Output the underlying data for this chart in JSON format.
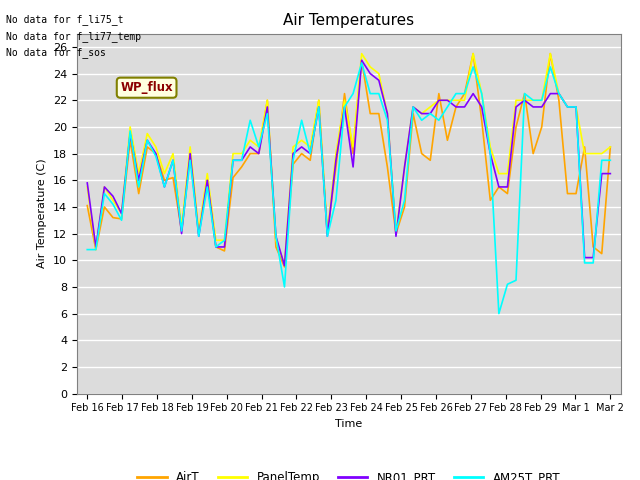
{
  "title": "Air Temperatures",
  "ylabel": "Air Temperature (C)",
  "xlabel": "Time",
  "xlabels": [
    "Feb 16",
    "Feb 17",
    "Feb 18",
    "Feb 19",
    "Feb 20",
    "Feb 21",
    "Feb 22",
    "Feb 23",
    "Feb 24",
    "Feb 25",
    "Feb 26",
    "Feb 27",
    "Feb 28",
    "Feb 29",
    "Mar 1",
    "Mar 2"
  ],
  "ylim": [
    0,
    27
  ],
  "yticks": [
    0,
    2,
    4,
    6,
    8,
    10,
    12,
    14,
    16,
    18,
    20,
    22,
    24,
    26
  ],
  "text_lines": [
    "No data for f_li75_t",
    "No data for f_li77_temp",
    "No data for f_sos"
  ],
  "wp_flux_label": "WP_flux",
  "legend_entries": [
    "AirT",
    "PanelTemp",
    "NR01_PRT",
    "AM25T_PRT"
  ],
  "legend_colors": [
    "#FFA500",
    "#FFFF00",
    "#8000FF",
    "#00FFFF"
  ],
  "background_color": "#DCDCDC",
  "AirT": [
    14.1,
    10.8,
    14.0,
    13.2,
    13.1,
    19.0,
    15.0,
    18.5,
    18.0,
    16.0,
    16.2,
    12.2,
    18.0,
    12.0,
    16.0,
    11.0,
    10.7,
    16.2,
    17.0,
    18.0,
    18.0,
    22.0,
    11.0,
    9.5,
    17.2,
    18.0,
    17.5,
    22.0,
    12.0,
    17.0,
    22.5,
    18.0,
    25.0,
    21.0,
    21.0,
    17.0,
    12.0,
    14.0,
    21.0,
    18.0,
    17.5,
    22.5,
    19.0,
    21.5,
    22.5,
    25.5,
    20.5,
    14.5,
    15.5,
    15.0,
    20.0,
    22.5,
    18.0,
    20.0,
    25.5,
    22.0,
    15.0,
    15.0,
    18.5,
    11.0,
    10.5,
    18.5
  ],
  "PanelTemp": [
    15.5,
    10.8,
    15.5,
    14.5,
    13.5,
    20.0,
    16.5,
    19.5,
    18.5,
    16.5,
    18.0,
    12.5,
    18.5,
    12.2,
    16.5,
    11.5,
    11.5,
    18.0,
    18.0,
    19.0,
    18.5,
    22.0,
    11.5,
    9.7,
    18.5,
    19.0,
    18.5,
    22.0,
    12.0,
    18.0,
    22.0,
    18.5,
    25.5,
    24.5,
    24.0,
    21.0,
    12.0,
    17.0,
    21.5,
    21.0,
    21.5,
    22.0,
    22.0,
    22.0,
    22.0,
    25.5,
    22.5,
    18.5,
    16.5,
    16.5,
    22.0,
    22.0,
    22.0,
    22.0,
    25.5,
    22.5,
    21.5,
    21.5,
    18.0,
    18.0,
    18.0,
    18.5
  ],
  "NR01_PRT": [
    15.8,
    11.0,
    15.5,
    14.8,
    13.5,
    19.5,
    16.0,
    19.0,
    18.0,
    15.5,
    17.5,
    12.0,
    18.0,
    11.8,
    16.0,
    11.0,
    11.0,
    17.5,
    17.5,
    18.5,
    18.0,
    21.5,
    11.8,
    9.6,
    18.0,
    18.5,
    18.0,
    21.5,
    11.8,
    17.5,
    21.5,
    17.0,
    25.0,
    24.0,
    23.5,
    21.0,
    11.8,
    17.0,
    21.5,
    21.0,
    21.0,
    22.0,
    22.0,
    21.5,
    21.5,
    22.5,
    21.5,
    18.0,
    15.5,
    15.5,
    21.5,
    22.0,
    21.5,
    21.5,
    22.5,
    22.5,
    21.5,
    21.5,
    10.2,
    10.2,
    16.5,
    16.5
  ],
  "AM25T_PRT": [
    10.8,
    10.8,
    15.0,
    14.2,
    13.0,
    19.7,
    15.5,
    19.0,
    17.8,
    15.5,
    17.5,
    12.2,
    17.5,
    11.8,
    15.5,
    11.0,
    11.5,
    17.5,
    17.5,
    20.5,
    18.5,
    21.0,
    11.8,
    8.0,
    17.5,
    20.5,
    18.0,
    21.5,
    11.8,
    14.5,
    21.5,
    22.5,
    24.8,
    22.5,
    22.5,
    20.5,
    12.2,
    14.5,
    21.5,
    20.5,
    21.0,
    20.5,
    21.5,
    22.5,
    22.5,
    24.5,
    22.5,
    18.0,
    6.0,
    8.2,
    8.5,
    22.5,
    22.0,
    22.0,
    24.5,
    22.5,
    21.5,
    21.5,
    9.8,
    9.8,
    17.5,
    17.5
  ]
}
